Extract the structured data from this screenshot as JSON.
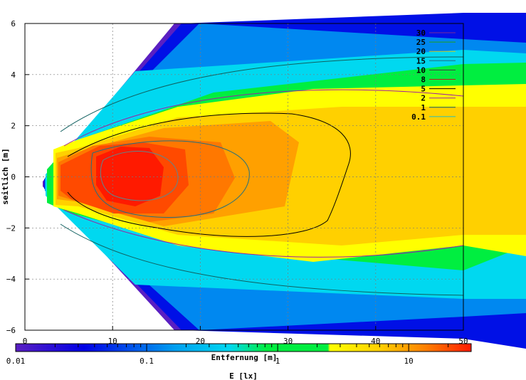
{
  "chart_data": {
    "type": "heatmap",
    "xlabel": "Entfernung [m]",
    "ylabel": "seitlich [m]",
    "colorbar_label": "E [lx]",
    "xlim": [
      0,
      50
    ],
    "ylim": [
      -6,
      6
    ],
    "x_ticks": [
      "0",
      "10",
      "20",
      "30",
      "40",
      "50"
    ],
    "y_ticks": [
      "6",
      "4",
      "2",
      "0",
      "−2",
      "−4",
      "−6"
    ],
    "colorbar_ticks": [
      "0.01",
      "0.1",
      "1",
      "10"
    ],
    "colorbar_range": [
      0.01,
      30
    ],
    "colorbar_scale": "log",
    "colorbar_colors": [
      "#5a1fc2",
      "#0000e6",
      "#00d8f0",
      "#00ee40",
      "#ffff00",
      "#ffd000",
      "#ff8000",
      "#ff1a00"
    ],
    "grid": true,
    "legend_position": "top-right",
    "contour_levels": [
      {
        "label": "30",
        "color": "#7a2a9a"
      },
      {
        "label": "25",
        "color": "#20a020"
      },
      {
        "label": "20",
        "color": "#d0c020"
      },
      {
        "label": "15",
        "color": "#207080"
      },
      {
        "label": "10",
        "color": "#404040"
      },
      {
        "label": "8",
        "color": "#c02020"
      },
      {
        "label": "5",
        "color": "#000000"
      },
      {
        "label": "2",
        "color": "#a020a0"
      },
      {
        "label": "1",
        "color": "#106060"
      },
      {
        "label": "0.1",
        "color": "#20c0c0"
      }
    ]
  }
}
